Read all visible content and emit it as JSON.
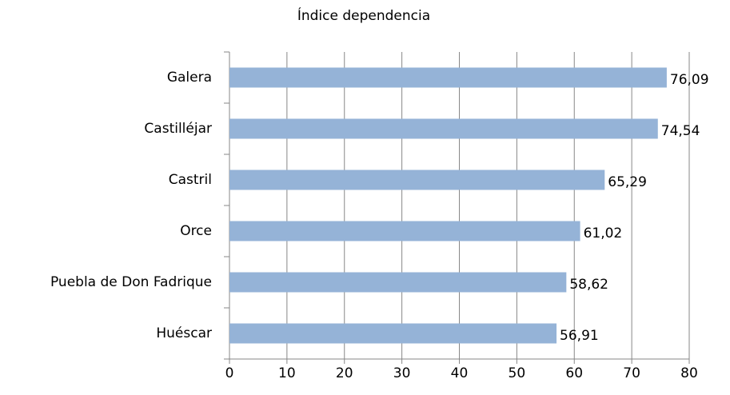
{
  "chart_data": {
    "type": "bar",
    "orientation": "horizontal",
    "title": "Índice dependencia",
    "categories": [
      "Galera",
      "Castilléjar",
      "Castril",
      "Orce",
      "Puebla de Don Fadrique",
      "Huéscar"
    ],
    "values": [
      76.09,
      74.54,
      65.29,
      61.02,
      58.62,
      56.91
    ],
    "value_labels": [
      "76,09",
      "74,54",
      "65,29",
      "61,02",
      "58,62",
      "56,91"
    ],
    "color": "#95b3d7",
    "xlim": [
      0,
      80
    ],
    "xticks": [
      0,
      10,
      20,
      30,
      40,
      50,
      60,
      70,
      80
    ],
    "grid": true
  }
}
